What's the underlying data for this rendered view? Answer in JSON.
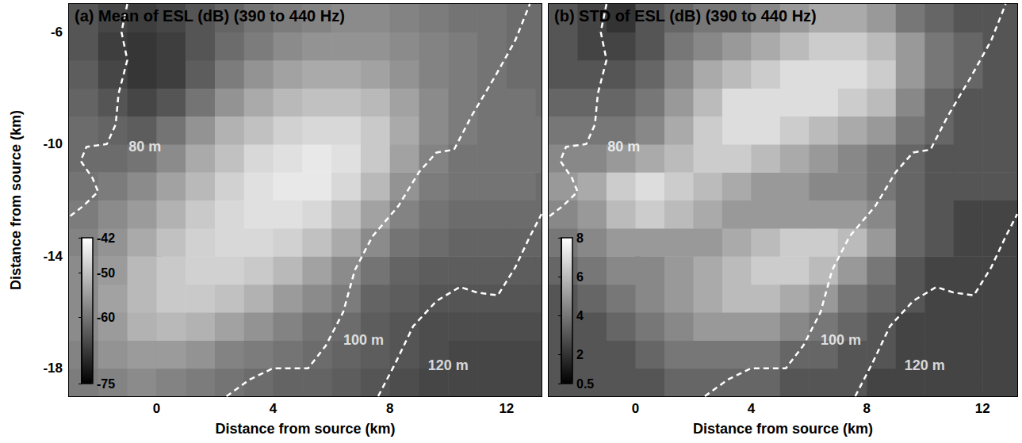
{
  "chart_data": [
    {
      "type": "heatmap",
      "title": "(a) Mean of ESL (dB) (390 to 440 Hz)",
      "x_label": "Distance from source (km)",
      "y_label": "Distance from source (km)",
      "xlim": [
        -3,
        13.2
      ],
      "ylim": [
        -19,
        -5
      ],
      "xticks": [
        0,
        4,
        8,
        12
      ],
      "yticks": [
        -18,
        -14,
        -10,
        -6
      ],
      "grid": false,
      "x": [
        -2.5,
        -1.5,
        -0.5,
        0.5,
        1.5,
        2.5,
        3.5,
        4.5,
        5.5,
        6.5,
        7.5,
        8.5,
        9.5,
        10.5,
        11.5,
        12.5,
        13.5
      ],
      "y": [
        -18.5,
        -17.5,
        -16.5,
        -15.5,
        -14.5,
        -13.5,
        -12.5,
        -11.5,
        -10.5,
        -9.5,
        -8.5,
        -7.5,
        -6.5,
        -5.5
      ],
      "cells": [
        [
          -59,
          -58,
          -57,
          -58,
          -59,
          -60,
          -61,
          -62,
          -62,
          -63,
          -64,
          -65,
          -66,
          -66,
          -66,
          -66,
          -66
        ],
        [
          -58,
          -56,
          -55,
          -55,
          -56,
          -58,
          -59,
          -60,
          -61,
          -62,
          -63,
          -64,
          -65,
          -66,
          -66,
          -66,
          -66
        ],
        [
          -57,
          -55,
          -52,
          -51,
          -52,
          -54,
          -56,
          -58,
          -60,
          -61,
          -63,
          -64,
          -65,
          -65,
          -65,
          -65,
          -65
        ],
        [
          -57,
          -54,
          -51,
          -49,
          -49,
          -50,
          -52,
          -55,
          -57,
          -59,
          -62,
          -63,
          -64,
          -64,
          -64,
          -64,
          -64
        ],
        [
          -57,
          -55,
          -51,
          -49,
          -48,
          -48,
          -49,
          -51,
          -54,
          -57,
          -60,
          -62,
          -63,
          -63,
          -63,
          -63,
          -63
        ],
        [
          -58,
          -56,
          -53,
          -50,
          -48,
          -47,
          -47,
          -48,
          -50,
          -53,
          -57,
          -60,
          -61,
          -62,
          -62,
          -62,
          -62
        ],
        [
          -59,
          -57,
          -55,
          -52,
          -49,
          -47,
          -46,
          -46,
          -47,
          -50,
          -54,
          -58,
          -60,
          -61,
          -61,
          -61,
          -61
        ],
        [
          -60,
          -59,
          -57,
          -54,
          -51,
          -48,
          -46,
          -45,
          -45,
          -47,
          -51,
          -56,
          -59,
          -60,
          -60,
          -60,
          -61
        ],
        [
          -61,
          -61,
          -60,
          -57,
          -53,
          -50,
          -47,
          -46,
          -45,
          -46,
          -49,
          -54,
          -58,
          -60,
          -60,
          -60,
          -60
        ],
        [
          -61,
          -62,
          -63,
          -60,
          -56,
          -52,
          -50,
          -48,
          -47,
          -47,
          -49,
          -53,
          -57,
          -59,
          -60,
          -60,
          -60
        ],
        [
          -62,
          -64,
          -66,
          -64,
          -60,
          -56,
          -53,
          -51,
          -50,
          -50,
          -51,
          -54,
          -57,
          -59,
          -60,
          -60,
          -61
        ],
        [
          -63,
          -66,
          -68,
          -67,
          -63,
          -59,
          -56,
          -54,
          -53,
          -53,
          -54,
          -56,
          -58,
          -59,
          -60,
          -61,
          -61
        ],
        [
          -64,
          -67,
          -68,
          -67,
          -64,
          -61,
          -59,
          -57,
          -56,
          -56,
          -56,
          -57,
          -58,
          -59,
          -60,
          -61,
          -61
        ],
        [
          -64,
          -66,
          -67,
          -66,
          -64,
          -62,
          -60,
          -59,
          -58,
          -57,
          -57,
          -58,
          -59,
          -60,
          -60,
          -61,
          -61
        ]
      ],
      "colorbar": {
        "range": [
          -75,
          -42
        ],
        "ticks": [
          -75,
          -60,
          -50,
          -42
        ],
        "colors": [
          "#000000",
          "#ffffff"
        ]
      },
      "contours": [
        {
          "label": "80 m",
          "color": "#ffffff",
          "line_style": "dashed",
          "label_x": -0.4,
          "label_y": -10.1,
          "x": [
            -1.0,
            -1.2,
            -1.0,
            -1.3,
            -1.4,
            -1.7,
            -2.4,
            -2.6,
            -2.2,
            -2.0,
            -2.5,
            -3.0
          ],
          "y": [
            -5.0,
            -6.0,
            -7.0,
            -8.2,
            -9.3,
            -10.0,
            -10.1,
            -10.6,
            -11.2,
            -11.7,
            -12.2,
            -12.6
          ]
        },
        {
          "label": "100 m",
          "color": "#ffffff",
          "line_style": "dashed",
          "label_x": 7.1,
          "label_y": -17.0,
          "x": [
            2.4,
            3.2,
            4.0,
            5.2,
            5.8,
            6.4,
            6.8,
            7.4,
            8.3,
            9.0,
            9.6,
            10.2,
            10.8,
            11.6,
            12.3,
            12.8
          ],
          "y": [
            -19.0,
            -18.4,
            -18.0,
            -18.0,
            -17.2,
            -16.0,
            -14.5,
            -13.3,
            -12.2,
            -11.0,
            -10.3,
            -10.2,
            -9.0,
            -7.6,
            -6.3,
            -5.0
          ]
        },
        {
          "label": "120 m",
          "color": "#ffffff",
          "line_style": "dashed",
          "label_x": 10.0,
          "label_y": -17.9,
          "x": [
            7.6,
            8.2,
            8.8,
            9.6,
            10.4,
            11.0,
            11.7,
            12.3,
            12.8,
            13.2
          ],
          "y": [
            -19.0,
            -17.8,
            -16.5,
            -15.6,
            -15.1,
            -15.3,
            -15.4,
            -14.4,
            -13.3,
            -12.5
          ]
        }
      ]
    },
    {
      "type": "heatmap",
      "title": "(b) STD of ESL (dB) (390 to 440 Hz)",
      "x_label": "Distance from source (km)",
      "xlim": [
        -3,
        13.2
      ],
      "ylim": [
        -19,
        -5
      ],
      "xticks": [
        0,
        4,
        8,
        12
      ],
      "yticks": [
        -18,
        -14,
        -10,
        -6
      ],
      "grid": false,
      "tick_labels": "x",
      "x": [
        -2.5,
        -1.5,
        -0.5,
        0.5,
        1.5,
        2.5,
        3.5,
        4.5,
        5.5,
        6.5,
        7.5,
        8.5,
        9.5,
        10.5,
        11.5,
        12.5,
        13.5
      ],
      "y": [
        -18.5,
        -17.5,
        -16.5,
        -15.5,
        -14.5,
        -13.5,
        -12.5,
        -11.5,
        -10.5,
        -9.5,
        -8.5,
        -7.5,
        -6.5,
        -5.5
      ],
      "cells": [
        [
          3,
          3,
          3,
          3,
          3.5,
          3.5,
          3.5,
          3.5,
          3,
          3,
          3,
          2.5,
          2.5,
          2.5,
          2.5,
          2.5,
          2.5
        ],
        [
          3,
          3,
          3,
          3.5,
          4,
          4,
          4,
          4,
          3.5,
          3.5,
          3,
          3,
          2.5,
          2.5,
          2.5,
          2.5,
          2.5
        ],
        [
          3,
          3,
          3.5,
          4,
          4.5,
          5,
          5,
          5,
          4.5,
          4,
          3.5,
          3,
          2.5,
          2.5,
          2.5,
          2.5,
          2.5
        ],
        [
          3,
          3.5,
          4,
          4.5,
          5,
          5.5,
          6,
          6,
          5.5,
          5,
          4,
          3.5,
          3,
          2.5,
          2.5,
          2.5,
          2.5
        ],
        [
          3.5,
          4,
          4.5,
          4.5,
          5,
          5.5,
          6,
          6.5,
          6.5,
          6,
          5,
          4,
          3,
          2.5,
          2.5,
          2.5,
          2.5
        ],
        [
          4,
          4.5,
          5,
          5,
          5,
          5,
          5.5,
          6,
          6.5,
          6.5,
          6,
          5,
          3.5,
          3,
          2.5,
          2.5,
          2.5
        ],
        [
          4.5,
          5,
          6,
          6.5,
          6,
          5.5,
          5,
          5,
          5,
          5,
          5,
          4.5,
          3.5,
          3,
          2.5,
          2.5,
          2.5
        ],
        [
          5,
          5.5,
          6.5,
          7,
          6.5,
          6,
          5.5,
          5,
          5,
          4.5,
          4.5,
          4,
          3.5,
          3,
          3,
          3,
          3
        ],
        [
          4.5,
          4.5,
          5,
          5.5,
          6,
          6.5,
          6.5,
          6,
          5.5,
          5,
          4.5,
          4,
          3.5,
          3,
          3,
          3,
          3
        ],
        [
          4,
          4,
          4,
          4.5,
          5.5,
          6.5,
          7,
          7,
          6.5,
          6,
          5.5,
          5,
          4,
          3.5,
          3,
          3,
          3
        ],
        [
          3.5,
          3.5,
          3.5,
          4,
          5,
          6,
          7,
          7,
          7,
          7,
          6.5,
          6,
          4.5,
          3.5,
          3,
          3,
          3
        ],
        [
          3,
          3,
          3,
          3.5,
          4.5,
          5.5,
          6,
          6.5,
          7,
          7,
          7,
          6.5,
          5,
          4,
          3.5,
          3,
          3
        ],
        [
          3,
          2.5,
          2.5,
          3,
          4,
          4.5,
          5,
          5.5,
          6,
          6.5,
          6.5,
          6,
          5,
          4,
          3.5,
          3,
          3
        ],
        [
          3,
          2.5,
          2,
          3,
          3.5,
          4,
          4,
          4.5,
          5,
          5.5,
          5.5,
          5,
          4,
          3.5,
          3,
          3,
          3
        ]
      ],
      "colorbar": {
        "range": [
          0.5,
          8
        ],
        "ticks": [
          0.5,
          2,
          4,
          6,
          8
        ],
        "colors": [
          "#000000",
          "#ffffff"
        ]
      },
      "contours": [
        {
          "label": "80 m",
          "color": "#ffffff",
          "line_style": "dashed",
          "label_x": -0.4,
          "label_y": -10.1,
          "x": [
            -1.0,
            -1.2,
            -1.0,
            -1.3,
            -1.4,
            -1.7,
            -2.4,
            -2.6,
            -2.2,
            -2.0,
            -2.5,
            -3.0
          ],
          "y": [
            -5.0,
            -6.0,
            -7.0,
            -8.2,
            -9.3,
            -10.0,
            -10.1,
            -10.6,
            -11.2,
            -11.7,
            -12.2,
            -12.6
          ]
        },
        {
          "label": "100 m",
          "color": "#ffffff",
          "line_style": "dashed",
          "label_x": 7.1,
          "label_y": -17.0,
          "x": [
            2.4,
            3.2,
            4.0,
            5.2,
            5.8,
            6.4,
            6.8,
            7.4,
            8.3,
            9.0,
            9.6,
            10.2,
            10.8,
            11.6,
            12.3,
            12.8
          ],
          "y": [
            -19.0,
            -18.4,
            -18.0,
            -18.0,
            -17.2,
            -16.0,
            -14.5,
            -13.3,
            -12.2,
            -11.0,
            -10.3,
            -10.2,
            -9.0,
            -7.6,
            -6.3,
            -5.0
          ]
        },
        {
          "label": "120 m",
          "color": "#ffffff",
          "line_style": "dashed",
          "label_x": 10.0,
          "label_y": -17.9,
          "x": [
            7.6,
            8.2,
            8.8,
            9.6,
            10.4,
            11.0,
            11.7,
            12.3,
            12.8,
            13.2
          ],
          "y": [
            -19.0,
            -17.8,
            -16.5,
            -15.6,
            -15.1,
            -15.3,
            -15.4,
            -14.4,
            -13.3,
            -12.5
          ]
        }
      ]
    }
  ]
}
